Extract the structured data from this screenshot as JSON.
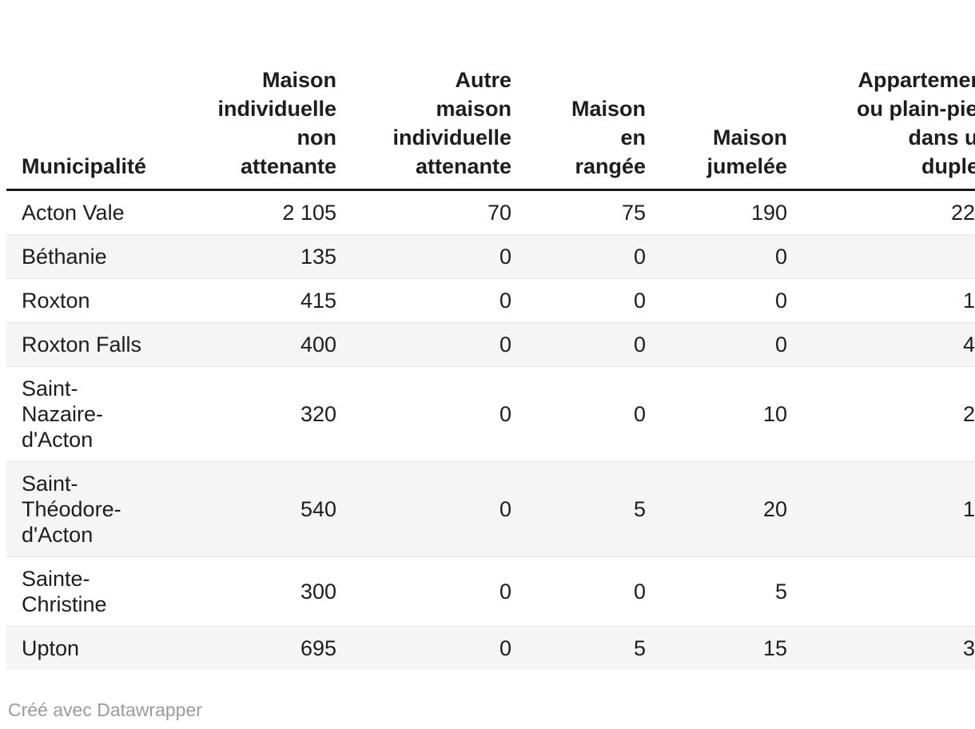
{
  "chart_data": {
    "type": "table",
    "columns": [
      {
        "id": "municipalite",
        "label": "Municipalité",
        "align": "left"
      },
      {
        "id": "maison_individuelle_non_attenante",
        "label": "Maison\nindividuelle\nnon\nattenante",
        "align": "right"
      },
      {
        "id": "autre_maison_individuelle_attenante",
        "label": "Autre\nmaison\nindividuelle\nattenante",
        "align": "right"
      },
      {
        "id": "maison_en_rangee",
        "label": "Maison\nen\nrangée",
        "align": "right"
      },
      {
        "id": "maison_jumelee",
        "label": "Maison\njumelée",
        "align": "right"
      },
      {
        "id": "appartement_plain_pied_duplex",
        "label": "Appartement\nou plain-pied\ndans un\nduplex",
        "align": "right",
        "clipped_at_viewport_edge": true
      }
    ],
    "rows": [
      {
        "name": "Acton Vale",
        "values": [
          "2 105",
          "70",
          "75",
          "190",
          "22"
        ]
      },
      {
        "name": "Béthanie",
        "values": [
          "135",
          "0",
          "0",
          "0",
          ""
        ]
      },
      {
        "name": "Roxton",
        "values": [
          "415",
          "0",
          "0",
          "0",
          "1"
        ]
      },
      {
        "name": "Roxton Falls",
        "values": [
          "400",
          "0",
          "0",
          "0",
          "4"
        ]
      },
      {
        "name": "Saint-\nNazaire-\nd'Acton",
        "values": [
          "320",
          "0",
          "0",
          "10",
          "2"
        ]
      },
      {
        "name": "Saint-\nThéodore-\nd'Acton",
        "values": [
          "540",
          "0",
          "5",
          "20",
          "1"
        ]
      },
      {
        "name": "Sainte-\nChristine",
        "values": [
          "300",
          "0",
          "0",
          "5",
          ""
        ]
      },
      {
        "name": "Upton",
        "values": [
          "695",
          "0",
          "5",
          "15",
          "3"
        ]
      }
    ],
    "last_column_values_clipped": true,
    "grid": "zebra-rows"
  },
  "footer": {
    "prefix": "Créé avec ",
    "link_label": "Datawrapper"
  },
  "colors": {
    "background": "#ffffff",
    "text": "#1d1d1d",
    "header_rule": "#1a1a1a",
    "row_divider": "#e6e6e6",
    "zebra_row": "#f5f5f5",
    "footer_text": "#9a9a9a"
  }
}
